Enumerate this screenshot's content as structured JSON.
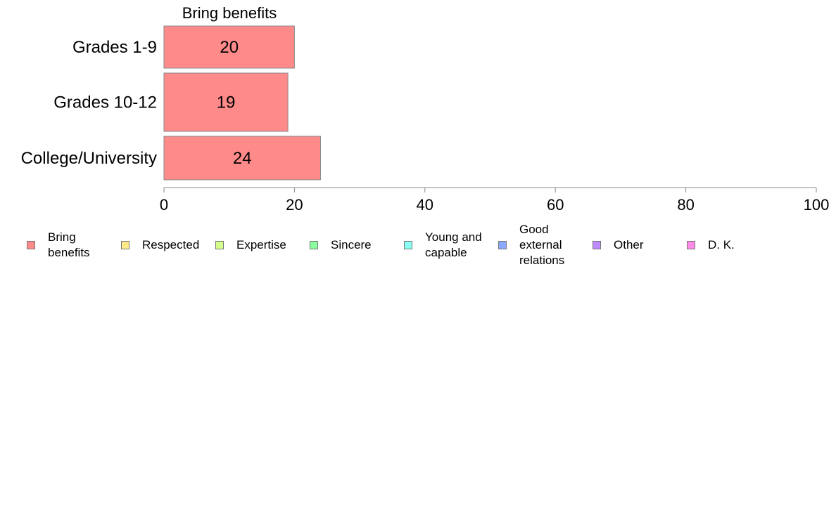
{
  "chart_data": {
    "type": "bar",
    "orientation": "horizontal",
    "title": "Bring benefits",
    "categories": [
      "Grades 1-9",
      "Grades 10-12",
      "College/University"
    ],
    "series": [
      {
        "name": "Bring benefits",
        "values": [
          20,
          19,
          24
        ],
        "color": "#ff8a8a"
      }
    ],
    "data_labels": [
      "20",
      "19",
      "24"
    ],
    "xlim": [
      0,
      100
    ],
    "xticks": [
      0,
      20,
      40,
      60,
      80,
      100
    ],
    "xtick_labels": [
      "0",
      "20",
      "40",
      "60",
      "80",
      "100"
    ],
    "grid": false,
    "legend_position": "bottom"
  },
  "legend": {
    "items": [
      {
        "label": "Bring benefits",
        "color": "#ff8a8a"
      },
      {
        "label": "Respected",
        "color": "#ffe98a"
      },
      {
        "label": "Expertise",
        "color": "#d4ff8a"
      },
      {
        "label": "Sincere",
        "color": "#8aff9e"
      },
      {
        "label": "Young and capable",
        "color": "#8afff4"
      },
      {
        "label": "Good external relations",
        "color": "#8aa9ff"
      },
      {
        "label": "Other",
        "color": "#c08aff"
      },
      {
        "label": "D. K.",
        "color": "#ff8ae8"
      }
    ]
  }
}
